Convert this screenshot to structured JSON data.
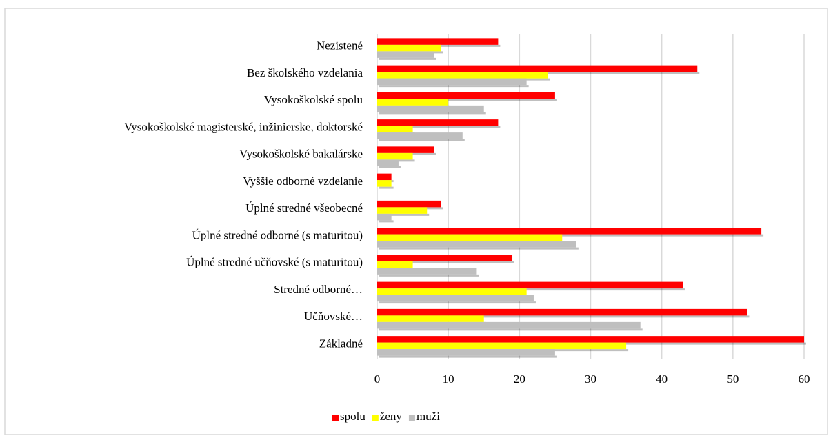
{
  "chart_data": {
    "type": "bar",
    "orientation": "horizontal",
    "categories": [
      "Nezistené",
      "Bez školského vzdelania",
      "Vysokoškolské spolu",
      "Vysokoškolské magisterské, inžinierske, doktorské",
      "Vysokoškolské bakalárske",
      "Vyššie odborné vzdelanie",
      "Úplné stredné všeobecné",
      "Úplné stredné odborné (s maturitou)",
      "Úplné stredné učňovské (s maturitou)",
      "Stredné odborné…",
      "Učňovské…",
      "Základné"
    ],
    "series": [
      {
        "name": "spolu",
        "color": "#ff0000",
        "values": [
          17,
          45,
          25,
          17,
          8,
          2,
          9,
          54,
          19,
          43,
          52,
          60
        ]
      },
      {
        "name": "ženy",
        "color": "#ffff00",
        "values": [
          9,
          24,
          10,
          5,
          5,
          2,
          7,
          26,
          5,
          21,
          15,
          35
        ]
      },
      {
        "name": "muži",
        "color": "#bfbfbf",
        "values": [
          8,
          21,
          15,
          12,
          3,
          0,
          2,
          28,
          14,
          22,
          37,
          25
        ]
      }
    ],
    "xlim": [
      0,
      60
    ],
    "xticks": [
      0,
      10,
      20,
      30,
      40,
      50,
      60
    ],
    "grid": true,
    "legend": "bottom"
  }
}
